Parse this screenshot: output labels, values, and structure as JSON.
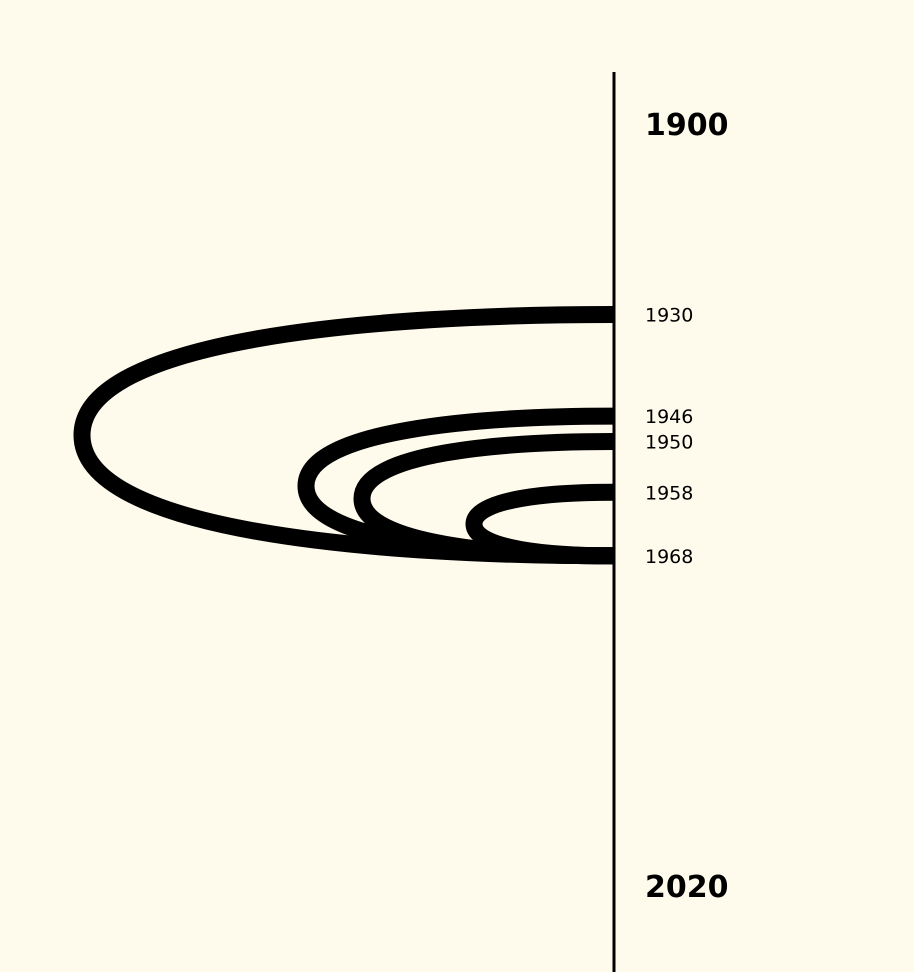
{
  "colors": {
    "background": "#fefaec",
    "ink": "#000000"
  },
  "chart_data": {
    "type": "arc-timeline",
    "axis": {
      "orientation": "vertical",
      "range": [
        1900,
        2020
      ]
    },
    "axis_labels": [
      "1900",
      "2020"
    ],
    "events": [
      {
        "year": 1930,
        "label": "1930"
      },
      {
        "year": 1946,
        "label": "1946"
      },
      {
        "year": 1950,
        "label": "1950"
      },
      {
        "year": 1958,
        "label": "1958"
      },
      {
        "year": 1968,
        "label": "1968"
      }
    ],
    "arcs": [
      {
        "from": 1930,
        "to": 1968
      },
      {
        "from": 1946,
        "to": 1968
      },
      {
        "from": 1950,
        "to": 1968
      },
      {
        "from": 1958,
        "to": 1968
      }
    ]
  }
}
